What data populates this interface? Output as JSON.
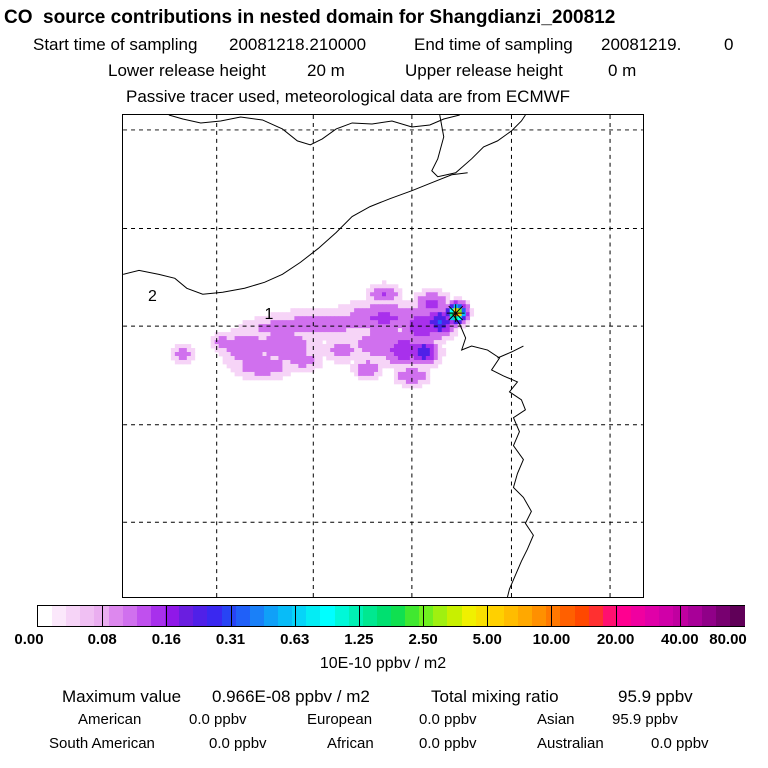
{
  "header": {
    "title": "CO  source contributions in nested domain for Shangdianzi_200812",
    "start_label": "Start time of sampling",
    "start_value": "20081218.210000",
    "end_label": "End time of sampling",
    "end_value": "20081219.",
    "end_value2": "0",
    "lower_label": "Lower release height",
    "lower_value": "20 m",
    "upper_label": "Upper release height",
    "upper_value": "0 m",
    "note": "Passive tracer used, meteorological data are from ECMWF"
  },
  "map": {
    "labels": [
      "2",
      "1"
    ]
  },
  "chart_data": {
    "type": "heatmap",
    "title": "CO  source contributions in nested domain for Shangdianzi_200812",
    "colorbar": {
      "ticks": [
        "0.00",
        "0.08",
        "0.16",
        "0.31",
        "0.63",
        "1.25",
        "2.50",
        "5.00",
        "10.00",
        "20.00",
        "40.00",
        "80.00"
      ],
      "units": "10E-10 ppbv / m2",
      "colors": [
        "#ffffff",
        "#fbe8fb",
        "#f6d4f7",
        "#f0c0f3",
        "#eaaef0",
        "#dd88ee",
        "#d070ee",
        "#c050ee",
        "#a830ec",
        "#9018e8",
        "#6a1ee0",
        "#5020e8",
        "#3a28f0",
        "#2844f4",
        "#2060f8",
        "#1a80f8",
        "#10a0f8",
        "#08bcf8",
        "#06d4f8",
        "#04ecf4",
        "#00ffff",
        "#00f8d8",
        "#00f0b4",
        "#00e890",
        "#00e070",
        "#10e050",
        "#40e830",
        "#70f020",
        "#a0f010",
        "#c8f000",
        "#f0f000",
        "#f8e000",
        "#ffd000",
        "#ffbc00",
        "#ffa800",
        "#ff9000",
        "#ff7800",
        "#ff6000",
        "#ff4800",
        "#ff3030",
        "#ff1070",
        "#ff0090",
        "#f000a0",
        "#e000a8",
        "#d000a8",
        "#c000a0",
        "#a80098",
        "#900088",
        "#780070",
        "#600058"
      ]
    },
    "plume_levels": [
      {
        "level": 0.05,
        "color": "#f6d4f7"
      },
      {
        "level": 0.12,
        "color": "#d070ee"
      },
      {
        "level": 0.22,
        "color": "#a830ec"
      },
      {
        "level": 0.32,
        "color": "#5020e8"
      },
      {
        "level": 0.42,
        "color": "#2060f8"
      },
      {
        "level": 0.52,
        "color": "#08bcf8"
      },
      {
        "level": 0.62,
        "color": "#00ffff"
      },
      {
        "level": 0.7,
        "color": "#00e890"
      },
      {
        "level": 0.78,
        "color": "#70f020"
      },
      {
        "level": 0.86,
        "color": "#ffd000"
      },
      {
        "level": 0.93,
        "color": "#ff6000"
      },
      {
        "level": 0.98,
        "color": "#ff0090"
      }
    ]
  },
  "summary": {
    "max_label": "Maximum value",
    "max_value": "0.966E-08 ppbv / m2",
    "total_label": "Total mixing ratio",
    "total_value": "95.9 ppbv",
    "regions": [
      {
        "name": "American",
        "value": "0.0 ppbv"
      },
      {
        "name": "European",
        "value": "0.0 ppbv"
      },
      {
        "name": "Asian",
        "value": "95.9 ppbv"
      },
      {
        "name": "South American",
        "value": "0.0 ppbv"
      },
      {
        "name": "African",
        "value": "0.0 ppbv"
      },
      {
        "name": "Australian",
        "value": "0.0 ppbv"
      }
    ]
  }
}
